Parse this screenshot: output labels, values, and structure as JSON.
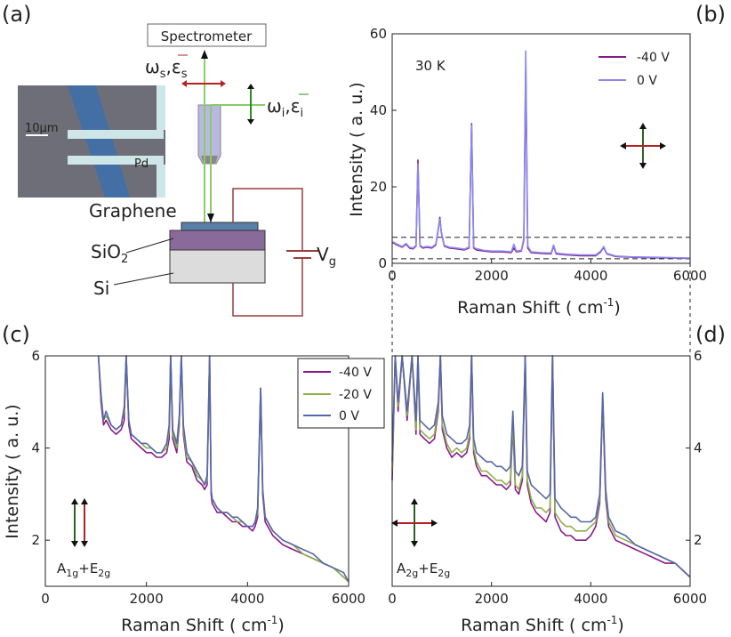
{
  "panel_labels": {
    "a": "(a)",
    "b": "(b)",
    "c": "(c)",
    "d": "(d)"
  },
  "schematic": {
    "spectrometer": "Spectrometer",
    "scattered": "ω",
    "scattered_sub": "s",
    "scattered_eps": ",ε",
    "incident": "ω",
    "incident_sub": "i",
    "incident_eps": ",ε",
    "scale_bar": "10μm",
    "electrode": "Pd",
    "graphene": "Graphene",
    "sio2": "SiO",
    "sio2_sub": "2",
    "si": "Si",
    "gate": "V",
    "gate_sub": "g",
    "colors": {
      "scattered": "#b22222",
      "incident": "#2e8b22",
      "wire": "#9b3b3b",
      "sio2": "#8a6a9a",
      "graphene": "#5a7fa8",
      "si": "#dcdcdc"
    }
  },
  "chart_data": [
    {
      "id": "b",
      "type": "line",
      "annotation": "30 K",
      "xlabel": "Raman Shift (  cm",
      "xlabel_sup": "-1",
      "xlabel_end": ")",
      "ylabel": "Intensity (  a. u.)",
      "xlim": [
        0,
        6000
      ],
      "ylim": [
        0,
        60
      ],
      "xticks": [
        0,
        2000,
        4000,
        6000
      ],
      "yticks": [
        0,
        20,
        40,
        60
      ],
      "legend": "top-right",
      "dashed_levels": [
        1.2,
        6.8
      ],
      "series": [
        {
          "name": "-40 V",
          "color": "#8b1a8b",
          "x": [
            0,
            100,
            200,
            280,
            350,
            420,
            480,
            520,
            560,
            620,
            700,
            800,
            880,
            930,
            960,
            990,
            1050,
            1150,
            1300,
            1450,
            1550,
            1600,
            1640,
            1700,
            1850,
            2000,
            2200,
            2400,
            2450,
            2500,
            2600,
            2650,
            2690,
            2730,
            2800,
            3000,
            3200,
            3250,
            3300,
            3500,
            3800,
            4100,
            4200,
            4260,
            4320,
            4500,
            4800,
            5200,
            5600,
            6000
          ],
          "y": [
            5.5,
            4.8,
            4.2,
            5.0,
            4.0,
            3.8,
            4.5,
            27,
            4.5,
            4.0,
            4.2,
            4.0,
            4.8,
            9,
            12,
            8,
            4.5,
            4.0,
            3.8,
            3.5,
            4.0,
            36.5,
            4.0,
            3.5,
            3.2,
            3.0,
            3.0,
            2.8,
            4.0,
            3.0,
            3.2,
            6,
            51,
            4,
            2.8,
            2.6,
            2.5,
            4.5,
            2.5,
            2.2,
            2.0,
            2.0,
            3.0,
            4.2,
            2.5,
            1.8,
            1.6,
            1.5,
            1.4,
            1.3
          ]
        },
        {
          "name": "0 V",
          "color": "#8888ee",
          "x": [
            0,
            100,
            200,
            280,
            350,
            420,
            480,
            520,
            560,
            620,
            700,
            800,
            880,
            930,
            960,
            990,
            1050,
            1150,
            1300,
            1450,
            1550,
            1600,
            1640,
            1700,
            1850,
            2000,
            2200,
            2400,
            2450,
            2500,
            2600,
            2650,
            2690,
            2730,
            2800,
            3000,
            3200,
            3250,
            3300,
            3500,
            3800,
            4100,
            4200,
            4260,
            4320,
            4500,
            4800,
            5200,
            5600,
            6000
          ],
          "y": [
            5.7,
            5.0,
            4.4,
            5.2,
            4.2,
            4.0,
            4.7,
            26,
            4.7,
            4.2,
            4.4,
            4.2,
            5.0,
            9.2,
            11.5,
            8.2,
            4.7,
            4.2,
            4.0,
            3.7,
            4.2,
            36,
            4.2,
            3.8,
            3.4,
            3.2,
            3.2,
            3.0,
            5.0,
            3.2,
            3.4,
            6.5,
            55.5,
            4.5,
            3.0,
            2.8,
            2.7,
            4.8,
            2.7,
            2.4,
            2.2,
            2.2,
            3.2,
            4.4,
            2.6,
            1.9,
            1.7,
            1.6,
            1.5,
            1.4
          ]
        }
      ]
    },
    {
      "id": "c",
      "type": "line",
      "annotation": "A",
      "annotation_sub1": "1g",
      "annotation_mid": "+E",
      "annotation_sub2": "2g",
      "xlabel": "Raman Shift (  cm",
      "xlabel_sup": "-1",
      "xlabel_end": ")",
      "ylabel": "Intensity (  a. u.)",
      "xlim": [
        0,
        6000
      ],
      "ylim": [
        1,
        6
      ],
      "xticks": [
        0,
        2000,
        4000,
        6000
      ],
      "yticks": [
        2,
        4,
        6
      ],
      "legend": "top-right",
      "series": [
        {
          "name": "-40 V",
          "color": "#8b1a8b",
          "x": [
            1050,
            1100,
            1150,
            1200,
            1300,
            1400,
            1500,
            1560,
            1600,
            1650,
            1700,
            1800,
            1900,
            2000,
            2100,
            2200,
            2300,
            2400,
            2450,
            2480,
            2520,
            2600,
            2650,
            2690,
            2730,
            2800,
            2900,
            3000,
            3100,
            3150,
            3200,
            3250,
            3280,
            3300,
            3400,
            3500,
            3600,
            3700,
            3800,
            3900,
            4000,
            4100,
            4150,
            4200,
            4260,
            4300,
            4350,
            4500,
            4700,
            4900,
            5100,
            5300,
            5500,
            5700,
            5900,
            6000
          ],
          "y": [
            6.0,
            5.0,
            4.5,
            4.6,
            4.4,
            4.3,
            4.4,
            4.6,
            6.0,
            4.5,
            4.2,
            4.1,
            4.0,
            3.9,
            3.9,
            3.8,
            3.8,
            3.9,
            4.2,
            6.0,
            4.2,
            3.9,
            4.5,
            6.0,
            4.3,
            3.7,
            3.6,
            3.3,
            3.2,
            3.1,
            3.2,
            6.0,
            3.0,
            2.8,
            2.6,
            2.6,
            2.5,
            2.4,
            2.4,
            2.3,
            2.3,
            2.2,
            2.3,
            2.5,
            5.3,
            3.0,
            2.4,
            2.1,
            1.9,
            1.8,
            1.7,
            1.6,
            1.5,
            1.4,
            1.2,
            1.1
          ]
        },
        {
          "name": "-20 V",
          "color": "#8fb04a",
          "x": [
            1050,
            1100,
            1150,
            1200,
            1300,
            1400,
            1500,
            1560,
            1600,
            1650,
            1700,
            1800,
            1900,
            2000,
            2100,
            2200,
            2300,
            2400,
            2450,
            2480,
            2520,
            2600,
            2650,
            2690,
            2730,
            2800,
            2900,
            3000,
            3100,
            3150,
            3200,
            3250,
            3280,
            3300,
            3400,
            3500,
            3600,
            3700,
            3800,
            3900,
            4000,
            4100,
            4150,
            4200,
            4260,
            4300,
            4350,
            4500,
            4700,
            4900,
            5100,
            5300,
            5500,
            5700,
            5900,
            6000
          ],
          "y": [
            6.0,
            5.1,
            4.6,
            4.7,
            4.5,
            4.4,
            4.5,
            4.8,
            6.0,
            4.6,
            4.3,
            4.2,
            4.1,
            4.0,
            4.0,
            3.9,
            3.9,
            4.0,
            4.4,
            6.0,
            4.3,
            4.0,
            4.6,
            6.0,
            4.4,
            3.8,
            3.7,
            3.4,
            3.3,
            3.2,
            3.3,
            6.0,
            3.1,
            2.9,
            2.7,
            2.6,
            2.6,
            2.5,
            2.4,
            2.4,
            2.3,
            2.3,
            2.4,
            2.6,
            5.3,
            3.1,
            2.5,
            2.2,
            2.0,
            1.9,
            1.7,
            1.6,
            1.5,
            1.4,
            1.2,
            1.1
          ]
        },
        {
          "name": "0 V",
          "color": "#5566aa",
          "x": [
            1050,
            1100,
            1150,
            1200,
            1300,
            1400,
            1500,
            1560,
            1600,
            1650,
            1700,
            1800,
            1900,
            2000,
            2100,
            2200,
            2300,
            2400,
            2450,
            2480,
            2520,
            2600,
            2650,
            2690,
            2730,
            2800,
            2900,
            3000,
            3100,
            3150,
            3200,
            3250,
            3280,
            3300,
            3400,
            3500,
            3600,
            3700,
            3800,
            3900,
            4000,
            4100,
            4150,
            4200,
            4260,
            4300,
            4350,
            4500,
            4700,
            4900,
            5100,
            5300,
            5500,
            5700,
            5900,
            6000
          ],
          "y": [
            6.0,
            5.2,
            4.6,
            4.8,
            4.5,
            4.4,
            4.5,
            4.9,
            6.0,
            4.6,
            4.3,
            4.2,
            4.1,
            4.1,
            4.0,
            3.9,
            3.9,
            4.1,
            4.5,
            6.0,
            4.4,
            4.1,
            4.7,
            6.0,
            4.5,
            3.9,
            3.7,
            3.5,
            3.3,
            3.2,
            3.4,
            6.0,
            3.1,
            2.9,
            2.7,
            2.6,
            2.6,
            2.5,
            2.5,
            2.4,
            2.3,
            2.3,
            2.4,
            2.7,
            5.3,
            3.1,
            2.5,
            2.2,
            2.0,
            1.9,
            1.8,
            1.7,
            1.5,
            1.4,
            1.3,
            1.1
          ]
        }
      ]
    },
    {
      "id": "d",
      "type": "line",
      "annotation": "A",
      "annotation_sub1": "2g",
      "annotation_mid": "+E",
      "annotation_sub2": "2g",
      "xlabel": "Raman Shift (  cm",
      "xlabel_sup": "-1",
      "xlabel_end": ")",
      "ylabel": "",
      "xlim": [
        0,
        6000
      ],
      "ylim": [
        1,
        6
      ],
      "xticks": [
        0,
        2000,
        4000,
        6000
      ],
      "yticks": [
        2,
        4,
        6
      ],
      "series": [
        {
          "name": "-40 V",
          "color": "#8b1a8b",
          "x": [
            0,
            60,
            120,
            200,
            300,
            400,
            480,
            520,
            560,
            650,
            750,
            850,
            930,
            970,
            1010,
            1100,
            1200,
            1300,
            1400,
            1500,
            1560,
            1600,
            1640,
            1700,
            1800,
            1900,
            2000,
            2100,
            2200,
            2300,
            2380,
            2430,
            2480,
            2550,
            2620,
            2680,
            2720,
            2800,
            2900,
            3000,
            3100,
            3180,
            3230,
            3280,
            3400,
            3500,
            3600,
            3700,
            3800,
            3900,
            4000,
            4100,
            4180,
            4240,
            4300,
            4360,
            4500,
            4700,
            4900,
            5100,
            5300,
            5500,
            5700,
            5900,
            6000
          ],
          "y": [
            3.3,
            6.0,
            4.8,
            6.0,
            4.6,
            6.0,
            4.3,
            6.0,
            4.3,
            4.2,
            4.1,
            4.2,
            4.8,
            6.0,
            4.4,
            4.0,
            3.8,
            3.9,
            3.8,
            3.9,
            4.2,
            6.0,
            3.9,
            3.6,
            3.4,
            3.4,
            3.3,
            3.2,
            3.2,
            3.1,
            3.2,
            4.5,
            3.1,
            3.0,
            3.3,
            6.0,
            3.2,
            2.8,
            2.6,
            2.5,
            2.4,
            2.6,
            6.0,
            2.5,
            2.2,
            2.1,
            2.1,
            2.0,
            2.0,
            2.0,
            2.1,
            2.3,
            2.8,
            5.0,
            2.9,
            2.3,
            2.0,
            1.9,
            1.8,
            1.7,
            1.6,
            1.5,
            1.5,
            1.3,
            1.2
          ]
        },
        {
          "name": "-20 V",
          "color": "#8fb04a",
          "x": [
            0,
            60,
            120,
            200,
            300,
            400,
            480,
            520,
            560,
            650,
            750,
            850,
            930,
            970,
            1010,
            1100,
            1200,
            1300,
            1400,
            1500,
            1560,
            1600,
            1640,
            1700,
            1800,
            1900,
            2000,
            2100,
            2200,
            2300,
            2380,
            2430,
            2480,
            2550,
            2620,
            2680,
            2720,
            2800,
            2900,
            3000,
            3100,
            3180,
            3230,
            3280,
            3400,
            3500,
            3600,
            3700,
            3800,
            3900,
            4000,
            4100,
            4180,
            4240,
            4300,
            4360,
            4500,
            4700,
            4900,
            5100,
            5300,
            5500,
            5700,
            5900,
            6000
          ],
          "y": [
            3.5,
            6.0,
            4.9,
            6.0,
            4.7,
            6.0,
            4.4,
            6.0,
            4.4,
            4.3,
            4.2,
            4.3,
            4.9,
            6.0,
            4.5,
            4.1,
            3.9,
            4.0,
            3.9,
            4.0,
            4.3,
            6.0,
            4.0,
            3.7,
            3.5,
            3.5,
            3.4,
            3.3,
            3.3,
            3.2,
            3.3,
            4.6,
            3.2,
            3.1,
            3.4,
            6.0,
            3.3,
            2.9,
            2.7,
            2.7,
            2.6,
            2.7,
            6.0,
            2.6,
            2.4,
            2.3,
            2.3,
            2.2,
            2.2,
            2.2,
            2.3,
            2.4,
            2.9,
            5.1,
            3.0,
            2.4,
            2.1,
            2.0,
            1.9,
            1.8,
            1.7,
            1.6,
            1.5,
            1.3,
            1.2
          ]
        },
        {
          "name": "0 V",
          "color": "#5566aa",
          "x": [
            0,
            60,
            120,
            200,
            300,
            400,
            480,
            520,
            560,
            650,
            750,
            850,
            930,
            970,
            1010,
            1100,
            1200,
            1300,
            1400,
            1500,
            1560,
            1600,
            1640,
            1700,
            1800,
            1900,
            2000,
            2100,
            2200,
            2300,
            2380,
            2430,
            2480,
            2550,
            2620,
            2680,
            2720,
            2800,
            2900,
            3000,
            3100,
            3180,
            3230,
            3280,
            3400,
            3500,
            3600,
            3700,
            3800,
            3900,
            4000,
            4100,
            4180,
            4240,
            4300,
            4360,
            4500,
            4700,
            4900,
            5100,
            5300,
            5500,
            5700,
            5900,
            6000
          ],
          "y": [
            3.7,
            6.0,
            5.0,
            6.0,
            4.8,
            6.0,
            4.6,
            6.0,
            4.6,
            4.5,
            4.4,
            4.5,
            5.0,
            6.0,
            4.7,
            4.3,
            4.2,
            4.1,
            4.1,
            4.2,
            4.5,
            6.0,
            4.2,
            3.9,
            3.8,
            3.7,
            3.7,
            3.6,
            3.6,
            3.5,
            3.6,
            4.8,
            3.5,
            3.4,
            3.6,
            6.0,
            3.5,
            3.2,
            3.1,
            3.0,
            2.9,
            3.0,
            6.0,
            2.9,
            2.7,
            2.6,
            2.5,
            2.5,
            2.4,
            2.4,
            2.4,
            2.5,
            3.0,
            5.2,
            3.1,
            2.5,
            2.2,
            2.1,
            1.9,
            1.8,
            1.7,
            1.6,
            1.5,
            1.3,
            1.2
          ]
        }
      ]
    }
  ]
}
